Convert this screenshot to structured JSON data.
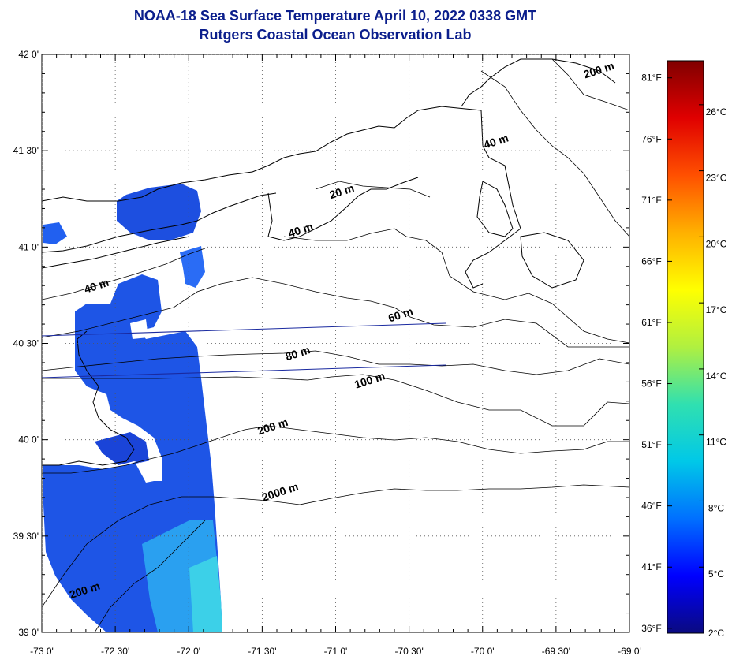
{
  "header": {
    "title": "NOAA-18 Sea Surface Temperature April 10, 2022 0338 GMT",
    "subtitle": "Rutgers Coastal Ocean Observation Lab"
  },
  "map": {
    "lon_range": [
      -73.0,
      -69.0
    ],
    "lat_range": [
      39.0,
      42.0
    ],
    "lon_ticks": [
      {
        "value": -73.0,
        "label": "-73 0'"
      },
      {
        "value": -72.5,
        "label": "-72 30'"
      },
      {
        "value": -72.0,
        "label": "-72 0'"
      },
      {
        "value": -71.5,
        "label": "-71 30'"
      },
      {
        "value": -71.0,
        "label": "-71 0'"
      },
      {
        "value": -70.5,
        "label": "-70 30'"
      },
      {
        "value": -70.0,
        "label": "-70 0'"
      },
      {
        "value": -69.5,
        "label": "-69 30'"
      },
      {
        "value": -69.0,
        "label": "-69 0'"
      }
    ],
    "lat_ticks": [
      {
        "value": 42.0,
        "label": "42 0'"
      },
      {
        "value": 41.5,
        "label": "41 30'"
      },
      {
        "value": 41.0,
        "label": "41 0'"
      },
      {
        "value": 40.5,
        "label": "40 30'"
      },
      {
        "value": 40.0,
        "label": "40 0'"
      },
      {
        "value": 39.5,
        "label": "39 30'"
      },
      {
        "value": 39.0,
        "label": "39 0'"
      }
    ],
    "grid": "dotted",
    "contour_labels": [
      {
        "text": "20 m",
        "lon": -70.95,
        "lat": 41.27
      },
      {
        "text": "40 m",
        "lon": -71.23,
        "lat": 41.07
      },
      {
        "text": "40 m",
        "lon": -72.62,
        "lat": 40.78
      },
      {
        "text": "40 m",
        "lon": -69.9,
        "lat": 41.53
      },
      {
        "text": "60 m",
        "lon": -70.55,
        "lat": 40.63
      },
      {
        "text": "80 m",
        "lon": -71.25,
        "lat": 40.43
      },
      {
        "text": "100 m",
        "lon": -70.76,
        "lat": 40.29
      },
      {
        "text": "200 m",
        "lon": -71.42,
        "lat": 40.05
      },
      {
        "text": "2000 m",
        "lon": -71.37,
        "lat": 39.71
      },
      {
        "text": "200 m",
        "lon": -69.2,
        "lat": 41.9
      },
      {
        "text": "200 m",
        "lon": -72.7,
        "lat": 39.2
      }
    ]
  },
  "colorbar": {
    "celsius_ticks": [
      {
        "value": 2,
        "label": "2°C"
      },
      {
        "value": 5,
        "label": "5°C"
      },
      {
        "value": 8,
        "label": "8°C"
      },
      {
        "value": 11,
        "label": "11°C"
      },
      {
        "value": 14,
        "label": "14°C"
      },
      {
        "value": 17,
        "label": "17°C"
      },
      {
        "value": 20,
        "label": "20°C"
      },
      {
        "value": 23,
        "label": "23°C"
      },
      {
        "value": 26,
        "label": "26°C"
      }
    ],
    "fahrenheit_ticks": [
      {
        "value": 36,
        "label": "36°F"
      },
      {
        "value": 41,
        "label": "41°F"
      },
      {
        "value": 46,
        "label": "46°F"
      },
      {
        "value": 51,
        "label": "51°F"
      },
      {
        "value": 56,
        "label": "56°F"
      },
      {
        "value": 61,
        "label": "61°F"
      },
      {
        "value": 66,
        "label": "66°F"
      },
      {
        "value": 71,
        "label": "71°F"
      },
      {
        "value": 76,
        "label": "76°F"
      },
      {
        "value": 81,
        "label": "81°F"
      }
    ],
    "celsius_range": [
      2,
      28
    ],
    "colors": [
      "#0a0a80",
      "#0000ff",
      "#0070ff",
      "#00c8e8",
      "#30e0b0",
      "#b0f040",
      "#ffff00",
      "#ffb000",
      "#ff5000",
      "#e00000",
      "#800000"
    ]
  },
  "colors": {
    "title": "#0b1e8c",
    "land_outline": "#000000",
    "sst_dark_blue": "#1d40d8",
    "sst_blue": "#2266f0",
    "sst_cyan": "#3cc8e8",
    "transect_line": "#1a2aa0"
  }
}
